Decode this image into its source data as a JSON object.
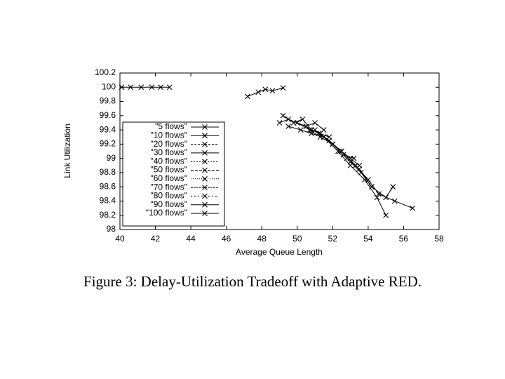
{
  "chart_data": {
    "type": "line",
    "caption": "Figure 3: Delay-Utilization Tradeoff with Adaptive RED.",
    "xlabel": "Average Queue Length",
    "ylabel": "Link Utilization",
    "xlim": [
      40,
      58
    ],
    "xticks": [
      40,
      42,
      44,
      46,
      48,
      50,
      52,
      54,
      56,
      58
    ],
    "ylim": [
      98,
      100.2
    ],
    "yticks": [
      98,
      98.2,
      98.4,
      98.6,
      98.8,
      99,
      99.2,
      99.4,
      99.6,
      99.8,
      100,
      100.2
    ],
    "grid": false,
    "legend": "lower-left",
    "marker": "x",
    "series": [
      {
        "name": "\"5 flows\"",
        "color": "#000000",
        "x": [
          40.1,
          40.6,
          41.2,
          41.8,
          42.3,
          42.8
        ],
        "values": [
          100,
          100,
          100,
          100,
          100,
          100
        ]
      },
      {
        "name": "\"10 flows\"",
        "color": "#000000",
        "x": [
          47.2,
          47.8,
          48.2,
          48.6,
          49.2
        ],
        "values": [
          99.87,
          99.93,
          99.97,
          99.95,
          99.99
        ]
      },
      {
        "name": "\"20 flows\"",
        "color": "#000000",
        "x": [
          49,
          49.5,
          50,
          50.5,
          51,
          51.5
        ],
        "values": [
          99.5,
          99.55,
          99.5,
          99.45,
          99.5,
          99.4
        ]
      },
      {
        "name": "\"30 flows\"",
        "color": "#000000",
        "x": [
          49.2,
          49.8,
          50.3,
          50.8,
          51.3,
          51.8
        ],
        "values": [
          99.6,
          99.5,
          99.55,
          99.4,
          99.35,
          99.3
        ]
      },
      {
        "name": "\"40 flows\"",
        "color": "#000000",
        "x": [
          49.5,
          50.2,
          50.8,
          51.5,
          52,
          52.5
        ],
        "values": [
          99.45,
          99.4,
          99.35,
          99.3,
          99.2,
          99.1
        ]
      },
      {
        "name": "\"50 flows\"",
        "color": "#000000",
        "x": [
          50,
          50.7,
          51.3,
          52,
          52.6,
          53.2
        ],
        "values": [
          99.5,
          99.4,
          99.3,
          99.2,
          99.05,
          99
        ]
      },
      {
        "name": "\"60 flows\"",
        "color": "#000000",
        "x": [
          50.5,
          51.2,
          51.8,
          52.5,
          53,
          53.5
        ],
        "values": [
          99.45,
          99.35,
          99.25,
          99.1,
          99,
          98.9
        ]
      },
      {
        "name": "\"70 flows\"",
        "color": "#000000",
        "x": [
          51,
          51.8,
          52.4,
          53,
          53.6,
          54.2
        ],
        "values": [
          99.4,
          99.25,
          99.1,
          98.95,
          98.8,
          98.6
        ]
      },
      {
        "name": "\"80 flows\"",
        "color": "#000000",
        "x": [
          51.5,
          52.3,
          53,
          53.8,
          54.5,
          55
        ],
        "values": [
          99.3,
          99.1,
          98.9,
          98.7,
          98.45,
          98.2
        ]
      },
      {
        "name": "\"90 flows\"",
        "color": "#000000",
        "x": [
          52,
          52.8,
          53.5,
          54.2,
          55,
          55.4
        ],
        "values": [
          99.2,
          99,
          98.85,
          98.6,
          98.45,
          98.6
        ]
      },
      {
        "name": "\"100 flows\"",
        "color": "#000000",
        "x": [
          52.5,
          53.3,
          54,
          54.6,
          55.5,
          56.5
        ],
        "values": [
          99.1,
          98.9,
          98.7,
          98.5,
          98.4,
          98.3
        ]
      }
    ]
  }
}
